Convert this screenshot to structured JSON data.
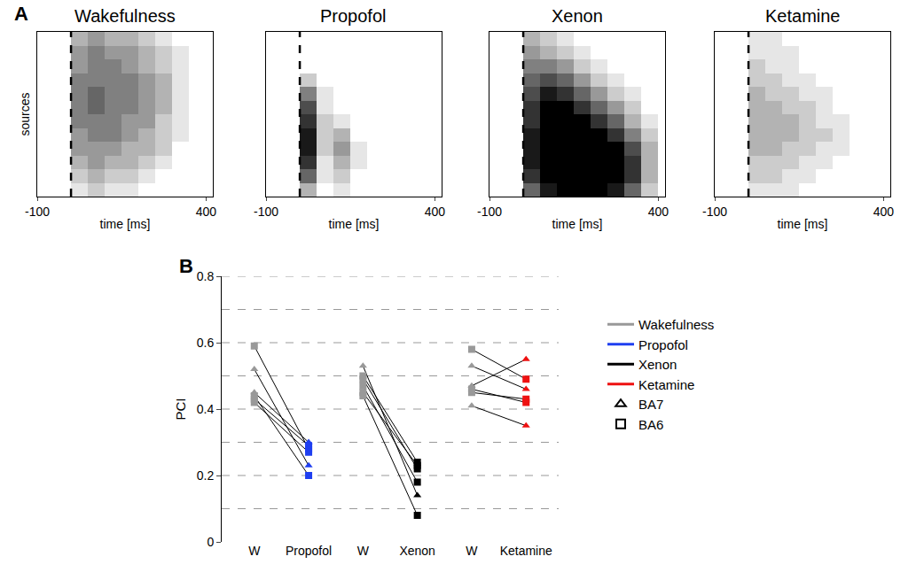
{
  "panel_labels": [
    "A",
    "B"
  ],
  "chart_data": [
    {
      "type": "heatmap",
      "title": "Wakefulness",
      "x_label": "time [ms]",
      "y_label": "sources",
      "x": [
        -75,
        -25,
        25,
        75,
        125,
        175,
        225,
        275,
        325,
        375
      ],
      "xlim": [
        -100,
        420
      ],
      "xticks": [
        -100,
        400
      ],
      "tick_labels": "x",
      "onset": 0,
      "cell_range": [
        0,
        1
      ],
      "cells": [
        [
          0,
          0,
          0.3,
          0.4,
          0.3,
          0.3,
          0.2,
          0.1,
          0,
          0
        ],
        [
          0,
          0,
          0.4,
          0.5,
          0.4,
          0.4,
          0.3,
          0.2,
          0.1,
          0
        ],
        [
          0,
          0,
          0.4,
          0.5,
          0.5,
          0.4,
          0.3,
          0.2,
          0.1,
          0
        ],
        [
          0,
          0,
          0.5,
          0.5,
          0.5,
          0.5,
          0.4,
          0.3,
          0.1,
          0
        ],
        [
          0,
          0,
          0.5,
          0.6,
          0.5,
          0.5,
          0.4,
          0.3,
          0.1,
          0
        ],
        [
          0,
          0,
          0.5,
          0.6,
          0.5,
          0.5,
          0.4,
          0.3,
          0.1,
          0
        ],
        [
          0,
          0,
          0.5,
          0.5,
          0.5,
          0.4,
          0.4,
          0.2,
          0.1,
          0
        ],
        [
          0,
          0,
          0.4,
          0.5,
          0.5,
          0.4,
          0.3,
          0.2,
          0.1,
          0
        ],
        [
          0,
          0,
          0.4,
          0.4,
          0.4,
          0.3,
          0.3,
          0.2,
          0,
          0
        ],
        [
          0,
          0,
          0.3,
          0.4,
          0.3,
          0.3,
          0.2,
          0.1,
          0,
          0
        ],
        [
          0,
          0,
          0.2,
          0.3,
          0.2,
          0.2,
          0.1,
          0,
          0,
          0
        ],
        [
          0,
          0,
          0.1,
          0.2,
          0.1,
          0.1,
          0,
          0,
          0,
          0
        ]
      ]
    },
    {
      "type": "heatmap",
      "title": "Propofol",
      "x_label": "time [ms]",
      "x": [
        -75,
        -25,
        25,
        75,
        125,
        175,
        225,
        275,
        325,
        375
      ],
      "xlim": [
        -100,
        420
      ],
      "xticks": [
        -100,
        400
      ],
      "tick_labels": "x",
      "onset": 0,
      "cell_range": [
        0,
        1
      ],
      "cells": [
        [
          0,
          0,
          0,
          0,
          0,
          0,
          0,
          0,
          0,
          0
        ],
        [
          0,
          0,
          0,
          0,
          0,
          0,
          0,
          0,
          0,
          0
        ],
        [
          0,
          0,
          0,
          0,
          0,
          0,
          0,
          0,
          0,
          0
        ],
        [
          0,
          0,
          0.2,
          0,
          0,
          0,
          0,
          0,
          0,
          0
        ],
        [
          0,
          0,
          0.5,
          0.1,
          0,
          0,
          0,
          0,
          0,
          0
        ],
        [
          0,
          0,
          0.7,
          0.1,
          0,
          0,
          0,
          0,
          0,
          0
        ],
        [
          0,
          0,
          0.8,
          0.2,
          0.1,
          0,
          0,
          0,
          0,
          0
        ],
        [
          0,
          0,
          0.9,
          0.2,
          0.3,
          0,
          0,
          0,
          0,
          0
        ],
        [
          0,
          0,
          0.9,
          0.2,
          0.4,
          0.1,
          0,
          0,
          0,
          0
        ],
        [
          0,
          0,
          0.8,
          0.1,
          0.3,
          0.1,
          0,
          0,
          0,
          0
        ],
        [
          0,
          0,
          0.6,
          0.1,
          0.2,
          0,
          0,
          0,
          0,
          0
        ],
        [
          0,
          0,
          0.3,
          0,
          0.1,
          0,
          0,
          0,
          0,
          0
        ]
      ]
    },
    {
      "type": "heatmap",
      "title": "Xenon",
      "x_label": "time [ms]",
      "x": [
        -75,
        -25,
        25,
        75,
        125,
        175,
        225,
        275,
        325,
        375
      ],
      "xlim": [
        -100,
        420
      ],
      "xticks": [
        -100,
        400
      ],
      "tick_labels": "x",
      "onset": 0,
      "cell_range": [
        0,
        1
      ],
      "cells": [
        [
          0,
          0,
          0.3,
          0.2,
          0.1,
          0,
          0,
          0,
          0,
          0
        ],
        [
          0,
          0,
          0.4,
          0.3,
          0.2,
          0.1,
          0,
          0,
          0,
          0
        ],
        [
          0,
          0,
          0.5,
          0.5,
          0.4,
          0.2,
          0.1,
          0,
          0,
          0
        ],
        [
          0,
          0,
          0.6,
          0.7,
          0.6,
          0.4,
          0.2,
          0.1,
          0,
          0
        ],
        [
          0,
          0,
          0.7,
          0.9,
          0.8,
          0.6,
          0.4,
          0.2,
          0.1,
          0
        ],
        [
          0,
          0,
          0.8,
          1,
          1,
          0.8,
          0.6,
          0.4,
          0.2,
          0
        ],
        [
          0,
          0,
          0.8,
          1,
          1,
          1,
          0.8,
          0.6,
          0.3,
          0.1
        ],
        [
          0,
          0,
          0.9,
          1,
          1,
          1,
          1,
          0.8,
          0.5,
          0.2
        ],
        [
          0,
          0,
          0.9,
          1,
          1,
          1,
          1,
          1,
          0.7,
          0.3
        ],
        [
          0,
          0,
          0.9,
          1,
          1,
          1,
          1,
          1,
          0.8,
          0.3
        ],
        [
          0,
          0,
          0.8,
          1,
          1,
          1,
          1,
          1,
          0.8,
          0.3
        ],
        [
          0,
          0,
          0.6,
          0.9,
          1,
          1,
          1,
          0.9,
          0.6,
          0.2
        ]
      ]
    },
    {
      "type": "heatmap",
      "title": "Ketamine",
      "x_label": "time [ms]",
      "x": [
        -75,
        -25,
        25,
        75,
        125,
        175,
        225,
        275,
        325,
        375
      ],
      "xlim": [
        -100,
        420
      ],
      "xticks": [
        -100,
        400
      ],
      "tick_labels": "x",
      "onset": 0,
      "cell_range": [
        0,
        1
      ],
      "cells": [
        [
          0,
          0,
          0.1,
          0.1,
          0,
          0,
          0,
          0,
          0,
          0
        ],
        [
          0,
          0,
          0.1,
          0.1,
          0.1,
          0,
          0,
          0,
          0,
          0
        ],
        [
          0,
          0,
          0.2,
          0.1,
          0.1,
          0,
          0,
          0,
          0,
          0
        ],
        [
          0,
          0,
          0.2,
          0.2,
          0.1,
          0.1,
          0,
          0,
          0,
          0
        ],
        [
          0,
          0,
          0.3,
          0.2,
          0.2,
          0.1,
          0.1,
          0,
          0,
          0
        ],
        [
          0,
          0,
          0.3,
          0.3,
          0.2,
          0.2,
          0.1,
          0,
          0,
          0
        ],
        [
          0,
          0,
          0.3,
          0.3,
          0.3,
          0.2,
          0.1,
          0.1,
          0,
          0
        ],
        [
          0,
          0,
          0.3,
          0.3,
          0.3,
          0.2,
          0.2,
          0.1,
          0,
          0
        ],
        [
          0,
          0,
          0.3,
          0.3,
          0.2,
          0.2,
          0.1,
          0.1,
          0,
          0
        ],
        [
          0,
          0,
          0.2,
          0.2,
          0.2,
          0.1,
          0.1,
          0,
          0,
          0
        ],
        [
          0,
          0,
          0.2,
          0.2,
          0.1,
          0.1,
          0,
          0,
          0,
          0
        ],
        [
          0,
          0,
          0.1,
          0.1,
          0.1,
          0,
          0,
          0,
          0,
          0
        ]
      ]
    },
    {
      "type": "line",
      "y_label": "PCI",
      "categories": [
        "W",
        "Propofol",
        "W",
        "Xenon",
        "W",
        "Ketamine"
      ],
      "ylim": [
        0,
        0.8
      ],
      "yticks": [
        0,
        0.2,
        0.4,
        0.6,
        0.8
      ],
      "grid": true,
      "grid_lines": [
        0.1,
        0.2,
        0.3,
        0.4,
        0.5,
        0.6,
        0.7,
        0.8
      ],
      "legend": "right",
      "series": [
        {
          "name": "Wakefulness",
          "color": "#999999"
        },
        {
          "name": "Propofol",
          "color": "#1f3ff0",
          "subjects": [
            {
              "marker": "square",
              "values": [
                0.59,
                0.28
              ]
            },
            {
              "marker": "triangle",
              "values": [
                0.52,
                0.23
              ]
            },
            {
              "marker": "triangle",
              "values": [
                0.45,
                0.3
              ]
            },
            {
              "marker": "square",
              "values": [
                0.44,
                0.2
              ]
            },
            {
              "marker": "square",
              "values": [
                0.43,
                0.29
              ]
            },
            {
              "marker": "square",
              "values": [
                0.42,
                0.27
              ]
            }
          ]
        },
        {
          "name": "Xenon",
          "color": "#000000",
          "subjects": [
            {
              "marker": "triangle",
              "values": [
                0.53,
                0.14
              ]
            },
            {
              "marker": "square",
              "values": [
                0.5,
                0.24
              ]
            },
            {
              "marker": "square",
              "values": [
                0.49,
                0.22
              ]
            },
            {
              "marker": "square",
              "values": [
                0.47,
                0.18
              ]
            },
            {
              "marker": "square",
              "values": [
                0.45,
                0.23
              ]
            },
            {
              "marker": "square",
              "values": [
                0.44,
                0.08
              ]
            }
          ]
        },
        {
          "name": "Ketamine",
          "color": "#ee1111",
          "subjects": [
            {
              "marker": "square",
              "values": [
                0.58,
                0.49
              ]
            },
            {
              "marker": "triangle",
              "values": [
                0.53,
                0.46
              ]
            },
            {
              "marker": "triangle",
              "values": [
                0.47,
                0.55
              ]
            },
            {
              "marker": "square",
              "values": [
                0.46,
                0.42
              ]
            },
            {
              "marker": "square",
              "values": [
                0.45,
                0.43
              ]
            },
            {
              "marker": "triangle",
              "values": [
                0.41,
                0.35
              ]
            }
          ]
        }
      ],
      "marker_legend": [
        {
          "name": "BA7",
          "marker": "triangle"
        },
        {
          "name": "BA6",
          "marker": "square"
        }
      ]
    }
  ]
}
